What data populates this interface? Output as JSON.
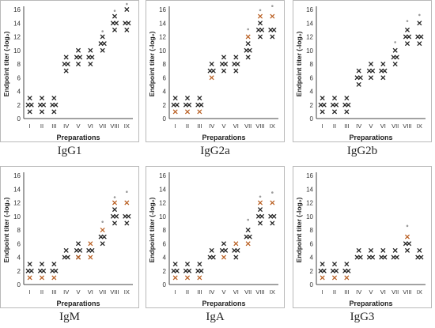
{
  "figure": {
    "colors": {
      "black_marker": "#222222",
      "brown_marker": "#b85c1e",
      "star_marker": "#9a9a9a",
      "frame": "#b9b9b9",
      "axis": "#444444"
    }
  },
  "chart_data": [
    {
      "type": "scatter",
      "caption": "IgG1",
      "xlabel": "Preparations",
      "ylabel": "Endpoint titer (-log₂)",
      "ylim": [
        0,
        16
      ],
      "yticks": [
        0,
        2,
        4,
        6,
        8,
        10,
        12,
        14,
        16
      ],
      "categories": [
        "I",
        "II",
        "III",
        "IV",
        "V",
        "VI",
        "VII",
        "VIII",
        "IX"
      ],
      "points": [
        {
          "x": "I",
          "values": [
            3,
            2,
            2,
            1
          ]
        },
        {
          "x": "II",
          "values": [
            3,
            2,
            2,
            1
          ]
        },
        {
          "x": "III",
          "values": [
            3,
            2,
            2,
            1
          ]
        },
        {
          "x": "IV",
          "values": [
            9,
            8,
            8,
            7
          ]
        },
        {
          "x": "V",
          "values": [
            10,
            9,
            9,
            8
          ]
        },
        {
          "x": "VI",
          "values": [
            10,
            9,
            9,
            8
          ]
        },
        {
          "x": "VII",
          "values": [
            12,
            11,
            11,
            10
          ]
        },
        {
          "x": "VIII",
          "values": [
            15,
            14,
            14,
            13
          ]
        },
        {
          "x": "IX",
          "values": [
            16,
            14,
            14,
            13
          ]
        }
      ],
      "brown_points": [],
      "stars": [
        {
          "x": "VII",
          "value": 12.8
        },
        {
          "x": "VIII",
          "value": 15.8
        },
        {
          "x": "IX",
          "value": 16.8
        }
      ]
    },
    {
      "type": "scatter",
      "caption": "IgG2a",
      "xlabel": "Preparations",
      "ylabel": "Endpoint titer (-log₂)",
      "ylim": [
        0,
        16
      ],
      "yticks": [
        0,
        2,
        4,
        6,
        8,
        10,
        12,
        14,
        16
      ],
      "categories": [
        "I",
        "II",
        "III",
        "IV",
        "V",
        "VI",
        "VII",
        "VIII",
        "IX"
      ],
      "points": [
        {
          "x": "I",
          "values": [
            3,
            2,
            2
          ]
        },
        {
          "x": "II",
          "values": [
            3,
            2,
            2
          ]
        },
        {
          "x": "III",
          "values": [
            3,
            2,
            2
          ]
        },
        {
          "x": "IV",
          "values": [
            8,
            7,
            7
          ]
        },
        {
          "x": "V",
          "values": [
            9,
            8,
            8,
            7
          ]
        },
        {
          "x": "VI",
          "values": [
            9,
            8,
            8,
            7
          ]
        },
        {
          "x": "VII",
          "values": [
            11,
            10,
            10,
            9
          ]
        },
        {
          "x": "VIII",
          "values": [
            14,
            13,
            13,
            12
          ]
        },
        {
          "x": "IX",
          "values": [
            13,
            13,
            12
          ]
        }
      ],
      "brown_points": [
        {
          "x": "I",
          "values": [
            1
          ]
        },
        {
          "x": "II",
          "values": [
            1
          ]
        },
        {
          "x": "III",
          "values": [
            1
          ]
        },
        {
          "x": "IV",
          "values": [
            6
          ]
        },
        {
          "x": "VII",
          "values": [
            12
          ]
        },
        {
          "x": "VIII",
          "values": [
            15
          ]
        },
        {
          "x": "IX",
          "values": [
            15
          ]
        }
      ],
      "stars": [
        {
          "x": "VII",
          "value": 13.1
        },
        {
          "x": "VIII",
          "value": 15.9
        },
        {
          "x": "IX",
          "value": 16.5
        }
      ]
    },
    {
      "type": "scatter",
      "caption": "IgG2b",
      "xlabel": "Preparations",
      "ylabel": "Endpoint titer (-log₂)",
      "ylim": [
        0,
        16
      ],
      "yticks": [
        0,
        2,
        4,
        6,
        8,
        10,
        12,
        14,
        16
      ],
      "categories": [
        "I",
        "II",
        "III",
        "IV",
        "V",
        "VI",
        "VII",
        "VIII",
        "IX"
      ],
      "points": [
        {
          "x": "I",
          "values": [
            3,
            2,
            2,
            1
          ]
        },
        {
          "x": "II",
          "values": [
            3,
            2,
            2,
            1
          ]
        },
        {
          "x": "III",
          "values": [
            3,
            2,
            2,
            1
          ]
        },
        {
          "x": "IV",
          "values": [
            7,
            6,
            6,
            5
          ]
        },
        {
          "x": "V",
          "values": [
            8,
            7,
            7,
            6
          ]
        },
        {
          "x": "VI",
          "values": [
            8,
            7,
            7,
            6
          ]
        },
        {
          "x": "VII",
          "values": [
            10,
            9,
            9,
            8
          ]
        },
        {
          "x": "VIII",
          "values": [
            13,
            12,
            12,
            11
          ]
        },
        {
          "x": "IX",
          "values": [
            14,
            12,
            12,
            11
          ]
        }
      ],
      "brown_points": [],
      "stars": [
        {
          "x": "VII",
          "value": 11.2
        },
        {
          "x": "VIII",
          "value": 14.3
        },
        {
          "x": "IX",
          "value": 15.2
        }
      ]
    },
    {
      "type": "scatter",
      "caption": "IgM",
      "xlabel": "Preparations",
      "ylabel": "Endpoint titer (-log₂)",
      "ylim": [
        0,
        16
      ],
      "yticks": [
        0,
        2,
        4,
        6,
        8,
        10,
        12,
        14,
        16
      ],
      "categories": [
        "I",
        "II",
        "III",
        "IV",
        "V",
        "VI",
        "VII",
        "VIII",
        "IX"
      ],
      "points": [
        {
          "x": "I",
          "values": [
            3,
            2,
            2
          ]
        },
        {
          "x": "II",
          "values": [
            3,
            2,
            2
          ]
        },
        {
          "x": "III",
          "values": [
            3,
            2,
            2
          ]
        },
        {
          "x": "IV",
          "values": [
            5,
            4,
            4
          ]
        },
        {
          "x": "V",
          "values": [
            6,
            5,
            5,
            4
          ]
        },
        {
          "x": "VI",
          "values": [
            5,
            5
          ]
        },
        {
          "x": "VII",
          "values": [
            7,
            7,
            6
          ]
        },
        {
          "x": "VIII",
          "values": [
            11,
            10,
            10,
            9
          ]
        },
        {
          "x": "IX",
          "values": [
            10,
            10,
            9
          ]
        }
      ],
      "brown_points": [
        {
          "x": "I",
          "values": [
            1
          ]
        },
        {
          "x": "II",
          "values": [
            1
          ]
        },
        {
          "x": "III",
          "values": [
            1
          ]
        },
        {
          "x": "V",
          "values": [
            4
          ]
        },
        {
          "x": "VI",
          "values": [
            6,
            4
          ]
        },
        {
          "x": "VII",
          "values": [
            8
          ]
        },
        {
          "x": "VIII",
          "values": [
            12
          ]
        },
        {
          "x": "IX",
          "values": [
            12
          ]
        }
      ],
      "stars": [
        {
          "x": "VII",
          "value": 9.2
        },
        {
          "x": "VIII",
          "value": 12.8
        },
        {
          "x": "IX",
          "value": 13.6
        }
      ]
    },
    {
      "type": "scatter",
      "caption": "IgA",
      "xlabel": "Preparations",
      "ylabel": "Endpoint titer (-log₂)",
      "ylim": [
        0,
        16
      ],
      "yticks": [
        0,
        2,
        4,
        6,
        8,
        10,
        12,
        14,
        16
      ],
      "categories": [
        "I",
        "II",
        "III",
        "IV",
        "V",
        "VI",
        "VII",
        "VIII",
        "IX"
      ],
      "points": [
        {
          "x": "I",
          "values": [
            3,
            2,
            2
          ]
        },
        {
          "x": "II",
          "values": [
            3,
            2,
            2
          ]
        },
        {
          "x": "III",
          "values": [
            3,
            2,
            2
          ]
        },
        {
          "x": "IV",
          "values": [
            5,
            4,
            4
          ]
        },
        {
          "x": "V",
          "values": [
            6,
            5,
            5
          ]
        },
        {
          "x": "VI",
          "values": [
            5,
            5,
            4
          ]
        },
        {
          "x": "VII",
          "values": [
            8,
            7,
            7
          ]
        },
        {
          "x": "VIII",
          "values": [
            11,
            10,
            10,
            9
          ]
        },
        {
          "x": "IX",
          "values": [
            10,
            10,
            9
          ]
        }
      ],
      "brown_points": [
        {
          "x": "I",
          "values": [
            1
          ]
        },
        {
          "x": "II",
          "values": [
            1
          ]
        },
        {
          "x": "III",
          "values": [
            1
          ]
        },
        {
          "x": "V",
          "values": [
            4
          ]
        },
        {
          "x": "VI",
          "values": [
            6
          ]
        },
        {
          "x": "VII",
          "values": [
            6
          ]
        },
        {
          "x": "VIII",
          "values": [
            12
          ]
        },
        {
          "x": "IX",
          "values": [
            12
          ]
        }
      ],
      "stars": [
        {
          "x": "VII",
          "value": 9.5
        },
        {
          "x": "VIII",
          "value": 12.9
        },
        {
          "x": "IX",
          "value": 13.5
        }
      ]
    },
    {
      "type": "scatter",
      "caption": "IgG3",
      "xlabel": "Preparations",
      "ylabel": "Endpoint titer (-log₂)",
      "ylim": [
        0,
        16
      ],
      "yticks": [
        0,
        2,
        4,
        6,
        8,
        10,
        12,
        14,
        16
      ],
      "categories": [
        "I",
        "II",
        "III",
        "IV",
        "V",
        "VI",
        "VII",
        "VIII",
        "IX"
      ],
      "points": [
        {
          "x": "I",
          "values": [
            3,
            2,
            2
          ]
        },
        {
          "x": "II",
          "values": [
            3,
            2,
            2
          ]
        },
        {
          "x": "III",
          "values": [
            3,
            2,
            2
          ]
        },
        {
          "x": "IV",
          "values": [
            5,
            4,
            4
          ]
        },
        {
          "x": "V",
          "values": [
            5,
            4,
            4
          ]
        },
        {
          "x": "VI",
          "values": [
            5,
            4,
            4
          ]
        },
        {
          "x": "VII",
          "values": [
            5,
            4,
            4
          ]
        },
        {
          "x": "VIII",
          "values": [
            6,
            6,
            5
          ]
        },
        {
          "x": "IX",
          "values": [
            5,
            4,
            4
          ]
        }
      ],
      "brown_points": [
        {
          "x": "I",
          "values": [
            1
          ]
        },
        {
          "x": "II",
          "values": [
            1
          ]
        },
        {
          "x": "III",
          "values": [
            1
          ]
        },
        {
          "x": "VIII",
          "values": [
            7
          ]
        }
      ],
      "stars": [
        {
          "x": "VIII",
          "value": 8.6
        }
      ]
    }
  ]
}
